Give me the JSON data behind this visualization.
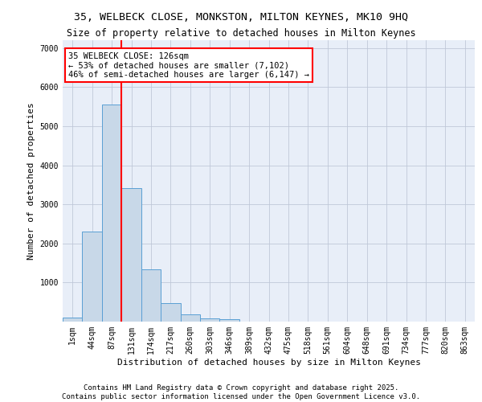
{
  "title_line1": "35, WELBECK CLOSE, MONKSTON, MILTON KEYNES, MK10 9HQ",
  "title_line2": "Size of property relative to detached houses in Milton Keynes",
  "xlabel": "Distribution of detached houses by size in Milton Keynes",
  "ylabel": "Number of detached properties",
  "bin_labels": [
    "1sqm",
    "44sqm",
    "87sqm",
    "131sqm",
    "174sqm",
    "217sqm",
    "260sqm",
    "303sqm",
    "346sqm",
    "389sqm",
    "432sqm",
    "475sqm",
    "518sqm",
    "561sqm",
    "604sqm",
    "648sqm",
    "691sqm",
    "734sqm",
    "777sqm",
    "820sqm",
    "863sqm"
  ],
  "bar_heights": [
    100,
    2300,
    5550,
    3420,
    1330,
    480,
    185,
    90,
    55,
    0,
    0,
    0,
    0,
    0,
    0,
    0,
    0,
    0,
    0,
    0,
    0
  ],
  "bar_color": "#c8d8e8",
  "bar_edgecolor": "#5a9fd4",
  "vline_x_idx": 3,
  "vline_color": "red",
  "annotation_text": "35 WELBECK CLOSE: 126sqm\n← 53% of detached houses are smaller (7,102)\n46% of semi-detached houses are larger (6,147) →",
  "ylim": [
    0,
    7200
  ],
  "yticks": [
    0,
    1000,
    2000,
    3000,
    4000,
    5000,
    6000,
    7000
  ],
  "grid_color": "#c0c8d8",
  "background_color": "#e8eef8",
  "footer_line1": "Contains HM Land Registry data © Crown copyright and database right 2025.",
  "footer_line2": "Contains public sector information licensed under the Open Government Licence v3.0.",
  "title_fontsize": 9.5,
  "subtitle_fontsize": 8.5,
  "axis_label_fontsize": 8,
  "tick_fontsize": 7,
  "footer_fontsize": 6.5,
  "annotation_fontsize": 7.5
}
